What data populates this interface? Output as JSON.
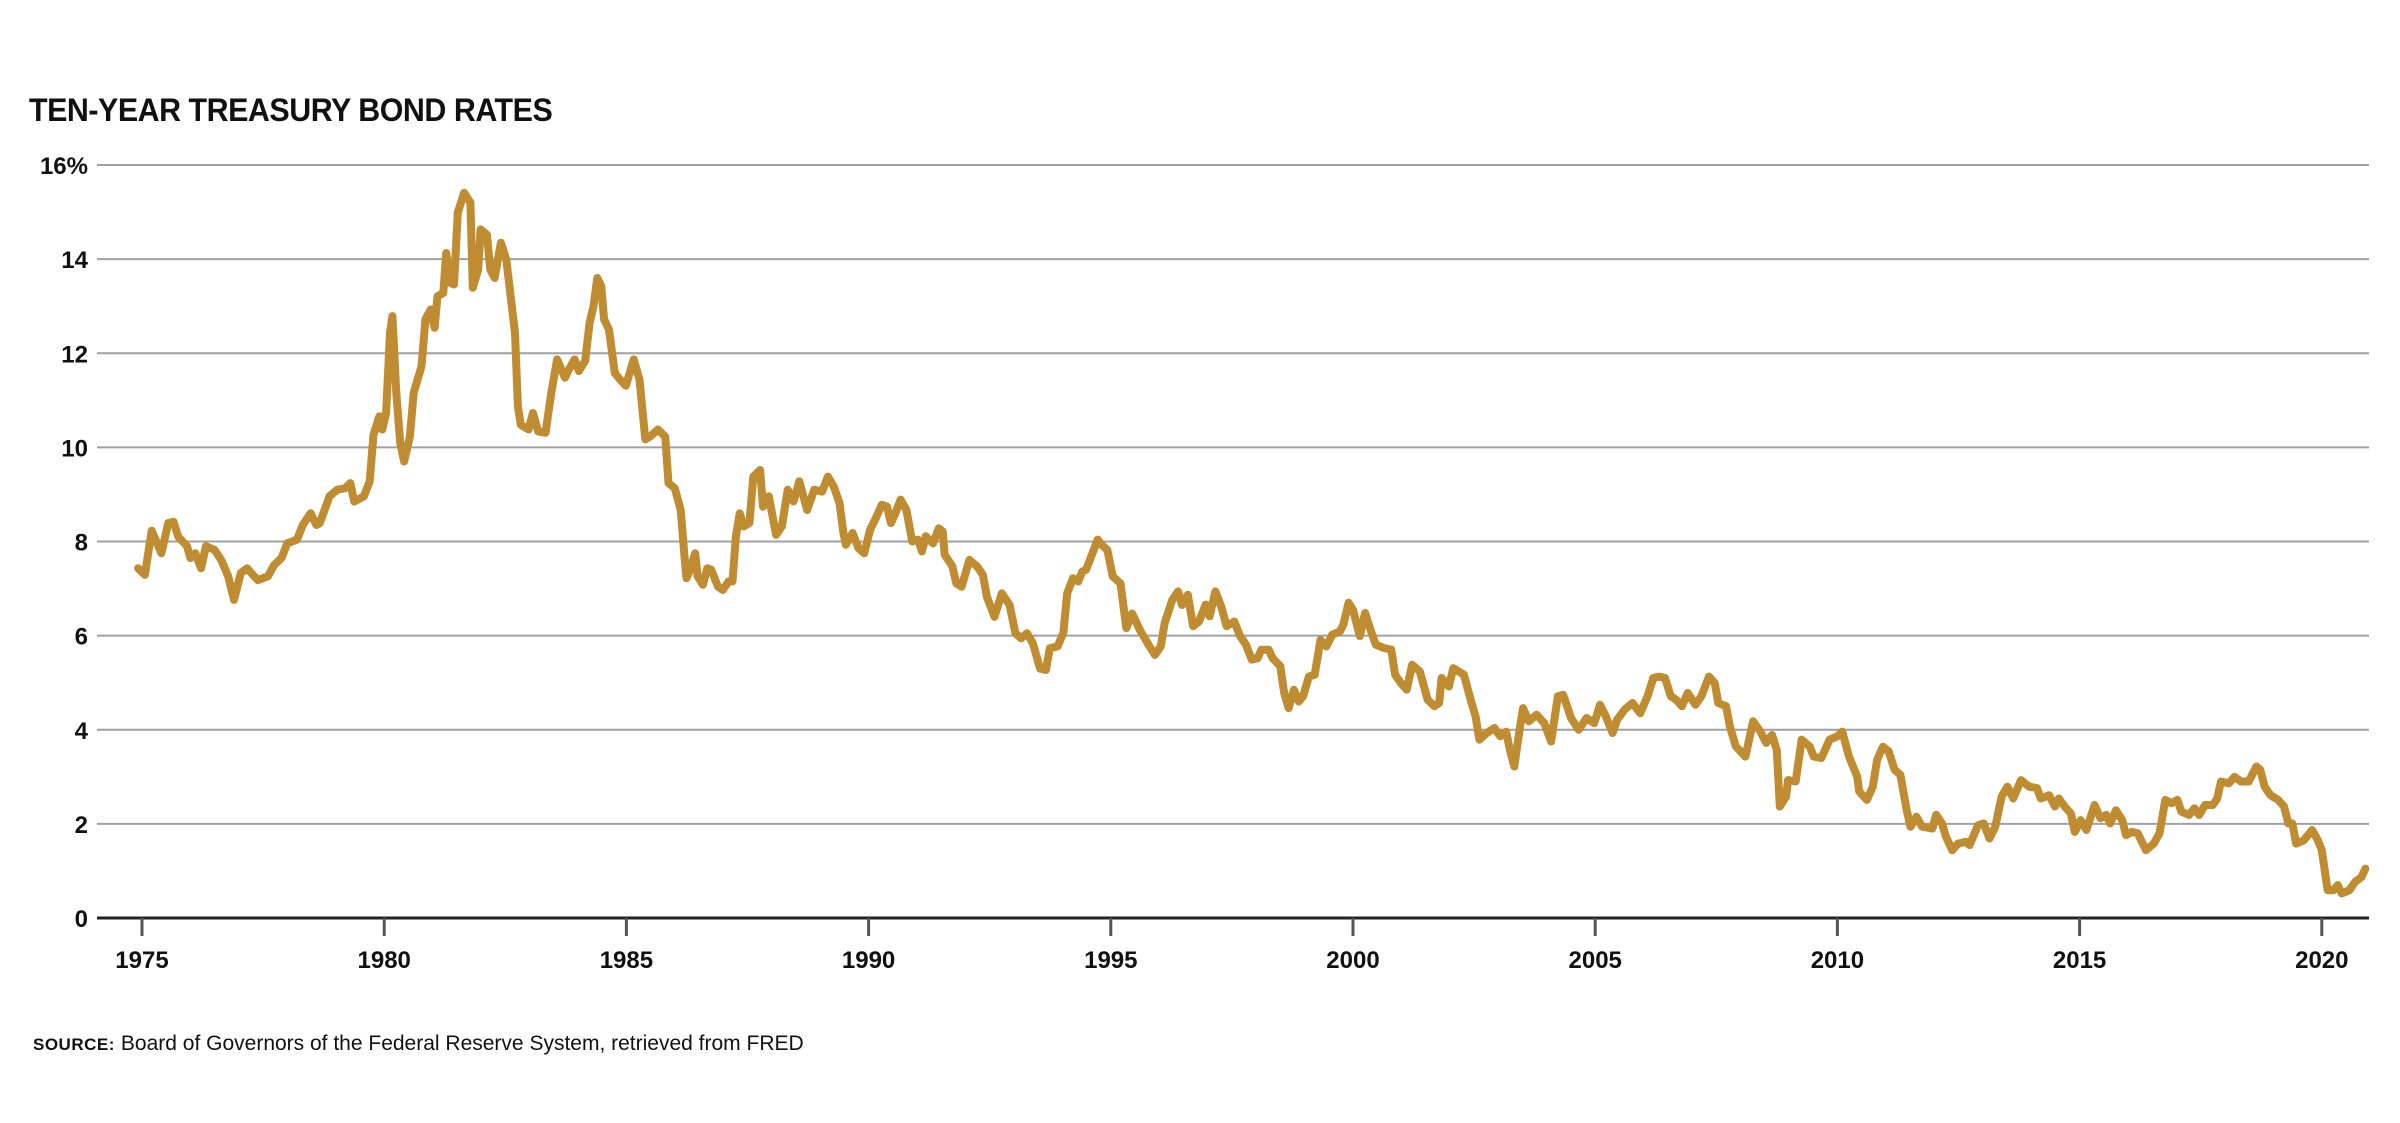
{
  "chart_data": {
    "type": "line",
    "title": "TEN-YEAR TREASURY BOND RATES",
    "xlabel": "",
    "ylabel": "",
    "xlim": [
      1975,
      2021
    ],
    "ylim": [
      0,
      16
    ],
    "y_ticks": [
      0,
      2,
      4,
      6,
      8,
      10,
      12,
      14,
      16
    ],
    "y_tick_labels": [
      "0",
      "2",
      "4",
      "6",
      "8",
      "10",
      "12",
      "14",
      "16%"
    ],
    "x_ticks": [
      1975,
      1980,
      1985,
      1990,
      1995,
      2000,
      2005,
      2010,
      2015,
      2020
    ],
    "x_tick_labels": [
      "1975",
      "1980",
      "1985",
      "1990",
      "1995",
      "2000",
      "2005",
      "2010",
      "2015",
      "2020"
    ],
    "grid": "horizontal",
    "legend": "none",
    "series": [
      {
        "color": "#C08C32",
        "x": [
          1974.92,
          1975.06,
          1975.2,
          1975.4,
          1975.54,
          1975.65,
          1975.75,
          1975.93,
          1976.0,
          1976.1,
          1976.22,
          1976.32,
          1976.5,
          1976.64,
          1976.78,
          1976.9,
          1977.04,
          1977.17,
          1977.29,
          1977.39,
          1977.6,
          1977.73,
          1977.88,
          1978.0,
          1978.2,
          1978.32,
          1978.48,
          1978.6,
          1978.67,
          1978.87,
          1979.03,
          1979.19,
          1979.3,
          1979.38,
          1979.58,
          1979.7,
          1979.78,
          1979.9,
          1979.96,
          1980.04,
          1980.12,
          1980.17,
          1980.25,
          1980.33,
          1980.41,
          1980.53,
          1980.61,
          1980.77,
          1980.85,
          1980.96,
          1981.04,
          1981.1,
          1981.22,
          1981.28,
          1981.36,
          1981.44,
          1981.52,
          1981.65,
          1981.78,
          1981.83,
          1981.94,
          1981.99,
          1982.12,
          1982.19,
          1982.28,
          1982.41,
          1982.52,
          1982.7,
          1982.76,
          1982.82,
          1982.98,
          1983.07,
          1983.18,
          1983.33,
          1983.45,
          1983.57,
          1983.73,
          1983.81,
          1983.93,
          1984.02,
          1984.15,
          1984.24,
          1984.32,
          1984.4,
          1984.48,
          1984.54,
          1984.64,
          1984.76,
          1984.87,
          1984.99,
          1985.15,
          1985.27,
          1985.39,
          1985.49,
          1985.65,
          1985.8,
          1985.87,
          1986.0,
          1986.12,
          1986.2,
          1986.24,
          1986.32,
          1986.42,
          1986.47,
          1986.58,
          1986.67,
          1986.75,
          1986.89,
          1986.99,
          1987.11,
          1987.19,
          1987.26,
          1987.34,
          1987.42,
          1987.54,
          1987.62,
          1987.76,
          1987.82,
          1987.94,
          1988.09,
          1988.21,
          1988.33,
          1988.45,
          1988.57,
          1988.73,
          1988.88,
          1989.04,
          1989.16,
          1989.28,
          1989.4,
          1989.48,
          1989.53,
          1989.67,
          1989.79,
          1989.91,
          1990.03,
          1990.15,
          1990.27,
          1990.38,
          1990.46,
          1990.54,
          1990.66,
          1990.78,
          1990.9,
          1991.02,
          1991.1,
          1991.18,
          1991.33,
          1991.45,
          1991.53,
          1991.57,
          1991.73,
          1991.81,
          1991.92,
          1992.08,
          1992.24,
          1992.36,
          1992.44,
          1992.6,
          1992.75,
          1992.91,
          1993.03,
          1993.15,
          1993.27,
          1993.39,
          1993.54,
          1993.66,
          1993.74,
          1993.9,
          1994.02,
          1994.1,
          1994.22,
          1994.33,
          1994.41,
          1994.49,
          1994.61,
          1994.73,
          1994.81,
          1994.93,
          1995.04,
          1995.2,
          1995.32,
          1995.44,
          1995.6,
          1995.76,
          1995.91,
          1996.03,
          1996.11,
          1996.27,
          1996.39,
          1996.47,
          1996.59,
          1996.7,
          1996.82,
          1996.96,
          1997.04,
          1997.16,
          1997.28,
          1997.39,
          1997.55,
          1997.67,
          1997.79,
          1997.91,
          1998.03,
          1998.11,
          1998.26,
          1998.34,
          1998.5,
          1998.58,
          1998.67,
          1998.78,
          1998.88,
          1998.97,
          1999.09,
          1999.21,
          1999.33,
          1999.45,
          1999.57,
          1999.73,
          1999.8,
          1999.91,
          2000.0,
          2000.14,
          2000.25,
          2000.36,
          2000.47,
          2000.63,
          2000.79,
          2000.87,
          2000.99,
          2001.11,
          2001.22,
          2001.38,
          2001.54,
          2001.68,
          2001.78,
          2001.83,
          2001.98,
          2002.07,
          2002.29,
          2002.41,
          2002.53,
          2002.61,
          2002.76,
          2002.92,
          2003.04,
          2003.16,
          2003.24,
          2003.33,
          2003.44,
          2003.51,
          2003.63,
          2003.79,
          2003.95,
          2004.09,
          2004.23,
          2004.34,
          2004.5,
          2004.66,
          2004.82,
          2004.98,
          2005.1,
          2005.22,
          2005.36,
          2005.45,
          2005.61,
          2005.77,
          2005.93,
          2006.08,
          2006.2,
          2006.32,
          2006.44,
          2006.56,
          2006.67,
          2006.79,
          2006.91,
          2007.07,
          2007.19,
          2007.35,
          2007.47,
          2007.54,
          2007.7,
          2007.78,
          2007.9,
          2008.1,
          2008.26,
          2008.41,
          2008.53,
          2008.65,
          2008.75,
          2008.81,
          2008.94,
          2008.98,
          2009.14,
          2009.26,
          2009.43,
          2009.51,
          2009.67,
          2009.84,
          2010.0,
          2010.1,
          2010.24,
          2010.41,
          2010.45,
          2010.61,
          2010.73,
          2010.82,
          2010.94,
          2011.06,
          2011.18,
          2011.3,
          2011.43,
          2011.51,
          2011.63,
          2011.75,
          2011.96,
          2012.04,
          2012.16,
          2012.24,
          2012.37,
          2012.49,
          2012.65,
          2012.73,
          2012.9,
          2013.02,
          2013.14,
          2013.26,
          2013.39,
          2013.51,
          2013.63,
          2013.79,
          2013.96,
          2014.12,
          2014.2,
          2014.37,
          2014.49,
          2014.57,
          2014.69,
          2014.82,
          2014.9,
          2015.02,
          2015.14,
          2015.31,
          2015.43,
          2015.55,
          2015.63,
          2015.75,
          2015.88,
          2015.96,
          2016.08,
          2016.2,
          2016.37,
          2016.53,
          2016.65,
          2016.77,
          2016.9,
          2017.02,
          2017.1,
          2017.26,
          2017.37,
          2017.47,
          2017.59,
          2017.75,
          2017.84,
          2017.92,
          2018.08,
          2018.2,
          2018.33,
          2018.49,
          2018.65,
          2018.73,
          2018.82,
          2018.94,
          2019.1,
          2019.22,
          2019.31,
          2019.39,
          2019.47,
          2019.63,
          2019.8,
          2019.92,
          2020.0,
          2020.12,
          2020.24,
          2020.33,
          2020.41,
          2020.57,
          2020.69,
          2020.82,
          2020.9
        ],
        "y": [
          7.43,
          7.29,
          8.23,
          7.75,
          8.39,
          8.42,
          8.1,
          7.9,
          7.65,
          7.75,
          7.43,
          7.9,
          7.82,
          7.6,
          7.26,
          6.76,
          7.33,
          7.43,
          7.29,
          7.18,
          7.26,
          7.5,
          7.65,
          7.96,
          8.04,
          8.35,
          8.6,
          8.35,
          8.39,
          8.96,
          9.1,
          9.13,
          9.24,
          8.85,
          8.96,
          9.28,
          10.27,
          10.66,
          10.38,
          10.73,
          12.43,
          12.79,
          11.16,
          10.1,
          9.7,
          10.23,
          11.16,
          11.72,
          12.72,
          12.93,
          12.54,
          13.21,
          13.28,
          14.13,
          13.5,
          13.46,
          14.99,
          15.41,
          15.2,
          13.39,
          13.78,
          14.63,
          14.52,
          13.78,
          13.6,
          14.35,
          13.99,
          12.43,
          10.87,
          10.48,
          10.38,
          10.73,
          10.34,
          10.31,
          11.16,
          11.87,
          11.48,
          11.65,
          11.87,
          11.62,
          11.84,
          12.65,
          13.0,
          13.6,
          13.43,
          12.72,
          12.5,
          11.58,
          11.44,
          11.31,
          11.87,
          11.44,
          10.17,
          10.23,
          10.38,
          10.23,
          9.24,
          9.13,
          8.67,
          7.68,
          7.22,
          7.4,
          7.75,
          7.26,
          7.08,
          7.43,
          7.4,
          7.04,
          6.97,
          7.15,
          7.15,
          8.11,
          8.6,
          8.32,
          8.39,
          9.38,
          9.52,
          8.74,
          8.96,
          8.14,
          8.32,
          9.1,
          8.85,
          9.28,
          8.67,
          9.1,
          9.06,
          9.38,
          9.17,
          8.82,
          8.18,
          7.93,
          8.18,
          7.86,
          7.75,
          8.25,
          8.5,
          8.78,
          8.74,
          8.39,
          8.57,
          8.89,
          8.67,
          8.0,
          8.04,
          7.79,
          8.11,
          7.96,
          8.28,
          8.21,
          7.72,
          7.47,
          7.11,
          7.04,
          7.61,
          7.47,
          7.29,
          6.83,
          6.4,
          6.9,
          6.65,
          6.05,
          5.94,
          6.05,
          5.84,
          5.3,
          5.27,
          5.73,
          5.77,
          6.05,
          6.9,
          7.22,
          7.15,
          7.36,
          7.4,
          7.72,
          8.04,
          7.93,
          7.82,
          7.26,
          7.11,
          6.16,
          6.47,
          6.12,
          5.84,
          5.59,
          5.77,
          6.26,
          6.76,
          6.94,
          6.65,
          6.87,
          6.2,
          6.3,
          6.66,
          6.41,
          6.94,
          6.62,
          6.2,
          6.3,
          5.99,
          5.81,
          5.49,
          5.52,
          5.7,
          5.7,
          5.52,
          5.35,
          4.78,
          4.46,
          4.85,
          4.6,
          4.71,
          5.13,
          5.17,
          5.91,
          5.77,
          6.02,
          6.09,
          6.23,
          6.7,
          6.55,
          5.99,
          6.48,
          6.13,
          5.81,
          5.74,
          5.7,
          5.17,
          4.99,
          4.85,
          5.38,
          5.24,
          4.64,
          4.5,
          4.57,
          5.1,
          4.92,
          5.31,
          5.17,
          4.71,
          4.28,
          3.79,
          3.93,
          4.04,
          3.86,
          3.96,
          3.57,
          3.22,
          4.0,
          4.46,
          4.18,
          4.32,
          4.14,
          3.75,
          4.71,
          4.74,
          4.25,
          4.0,
          4.25,
          4.14,
          4.53,
          4.28,
          3.93,
          4.21,
          4.43,
          4.57,
          4.35,
          4.71,
          5.1,
          5.13,
          5.1,
          4.71,
          4.64,
          4.5,
          4.78,
          4.53,
          4.71,
          5.13,
          4.99,
          4.57,
          4.5,
          4.07,
          3.65,
          3.43,
          4.18,
          3.96,
          3.72,
          3.89,
          3.57,
          2.37,
          2.58,
          2.93,
          2.9,
          3.79,
          3.64,
          3.43,
          3.4,
          3.79,
          3.86,
          3.96,
          3.43,
          3.0,
          2.69,
          2.51,
          2.79,
          3.36,
          3.64,
          3.54,
          3.15,
          3.04,
          2.29,
          1.94,
          2.15,
          1.94,
          1.9,
          2.19,
          2.01,
          1.73,
          1.44,
          1.58,
          1.62,
          1.55,
          1.97,
          2.01,
          1.69,
          1.94,
          2.58,
          2.79,
          2.54,
          2.93,
          2.79,
          2.76,
          2.54,
          2.61,
          2.37,
          2.54,
          2.37,
          2.22,
          1.83,
          2.08,
          1.87,
          2.4,
          2.12,
          2.19,
          2.01,
          2.29,
          2.08,
          1.76,
          1.83,
          1.8,
          1.44,
          1.58,
          1.8,
          2.51,
          2.44,
          2.51,
          2.26,
          2.19,
          2.33,
          2.19,
          2.4,
          2.4,
          2.54,
          2.9,
          2.86,
          3.0,
          2.9,
          2.9,
          3.22,
          3.15,
          2.79,
          2.61,
          2.51,
          2.37,
          2.01,
          2.01,
          1.58,
          1.65,
          1.87,
          1.65,
          1.44,
          0.59,
          0.59,
          0.7,
          0.52,
          0.59,
          0.77,
          0.87,
          1.05
        ]
      }
    ]
  },
  "source": {
    "label": "SOURCE:",
    "text": "Board of Governors of the Federal Reserve System, retrieved from FRED"
  },
  "colors": {
    "line": "#C08C32",
    "gridline": "#A0A0A4",
    "axis": "#222222",
    "tick": "#555555"
  }
}
